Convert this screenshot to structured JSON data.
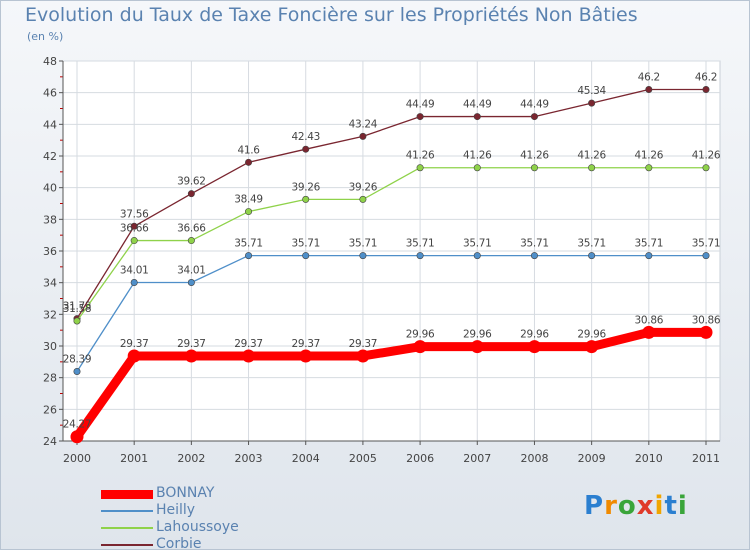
{
  "header": {
    "title": "Evolution du Taux de Taxe Foncière sur les Propriétés Non Bâties",
    "unit": "(en %)"
  },
  "brand": {
    "letters": [
      "P",
      "r",
      "o",
      "x",
      "i",
      "t",
      "i"
    ],
    "colors": [
      "#2b7fd0",
      "#f08a00",
      "#3aa53a",
      "#e03a2a",
      "#f0a500",
      "#2b7fd0",
      "#3aa53a"
    ]
  },
  "chart_data": {
    "type": "line",
    "x": [
      "2000",
      "2001",
      "2002",
      "2003",
      "2004",
      "2005",
      "2006",
      "2007",
      "2008",
      "2009",
      "2010",
      "2011"
    ],
    "ylim": [
      24,
      48
    ],
    "yticks": [
      "24",
      "26",
      "28",
      "30",
      "32",
      "34",
      "36",
      "38",
      "40",
      "42",
      "44",
      "46",
      "48"
    ],
    "grid": true,
    "legend_position": "bottom-left",
    "series": [
      {
        "name": "BONNAY",
        "color": "#ff0000",
        "values": [
          24.27,
          29.37,
          29.37,
          29.37,
          29.37,
          29.37,
          29.96,
          29.96,
          29.96,
          29.96,
          30.86,
          30.86
        ],
        "labels": [
          "24.27",
          "29.37",
          "29.37",
          "29.37",
          "29.37",
          "29.37",
          "29.96",
          "29.96",
          "29.96",
          "29.96",
          "30.86",
          "30.86"
        ]
      },
      {
        "name": "Heilly",
        "color": "#4f8fc9",
        "values": [
          28.39,
          34.01,
          34.01,
          35.71,
          35.71,
          35.71,
          35.71,
          35.71,
          35.71,
          35.71,
          35.71,
          35.71
        ],
        "labels": [
          "28.39",
          "34.01",
          "34.01",
          "35.71",
          "35.71",
          "35.71",
          "35.71",
          "35.71",
          "35.71",
          "35.71",
          "35.71",
          "35.71"
        ]
      },
      {
        "name": "Lahoussoye",
        "color": "#8fd24a",
        "values": [
          31.58,
          36.66,
          36.66,
          38.49,
          39.26,
          39.26,
          41.26,
          41.26,
          41.26,
          41.26,
          41.26,
          41.26
        ],
        "labels": [
          "31.58",
          "36.66",
          "36.66",
          "38.49",
          "39.26",
          "39.26",
          "41.26",
          "41.26",
          "41.26",
          "41.26",
          "41.26",
          "41.26"
        ]
      },
      {
        "name": "Corbie",
        "color": "#7a2630",
        "values": [
          31.73,
          37.56,
          39.62,
          41.6,
          42.43,
          43.24,
          44.49,
          44.49,
          44.49,
          45.34,
          46.2,
          46.2
        ],
        "labels": [
          "31.73",
          "37.56",
          "39.62",
          "41.6",
          "42.43",
          "43.24",
          "44.49",
          "44.49",
          "44.49",
          "45.34",
          "46.2",
          "46.2"
        ]
      }
    ]
  }
}
